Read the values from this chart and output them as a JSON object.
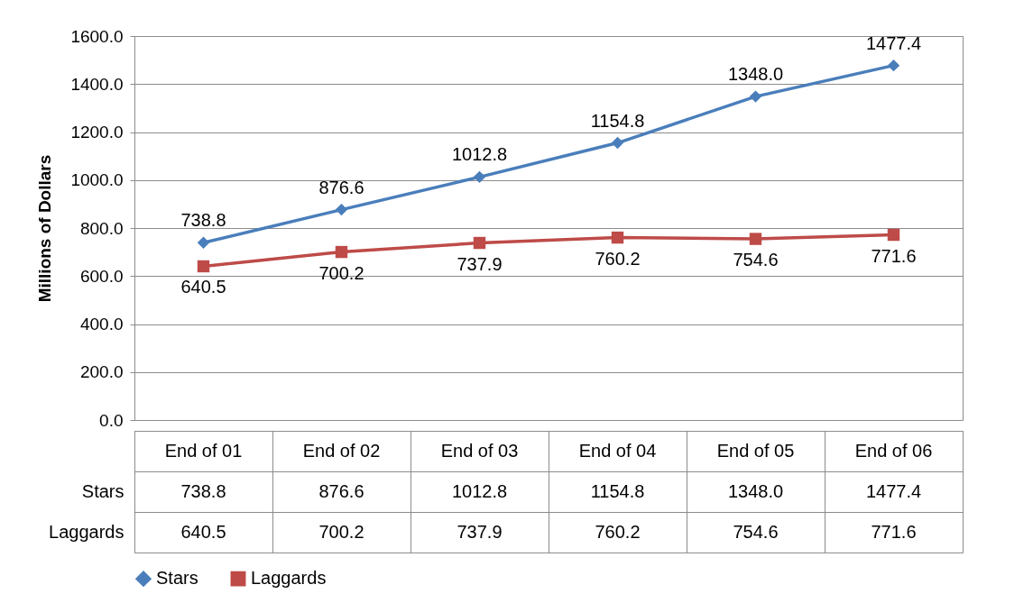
{
  "chart_data": {
    "type": "line",
    "categories": [
      "End of 01",
      "End of 02",
      "End of 03",
      "End of 04",
      "End of 05",
      "End of 06"
    ],
    "ylabel": "Millions of Dollars",
    "ylim": [
      0,
      1600
    ],
    "yticks": [
      {
        "value": 0,
        "label": "0.0"
      },
      {
        "value": 200,
        "label": "200.0"
      },
      {
        "value": 400,
        "label": "400.0"
      },
      {
        "value": 600,
        "label": "600.0"
      },
      {
        "value": 800,
        "label": "800.0"
      },
      {
        "value": 1000,
        "label": "1000.0"
      },
      {
        "value": 1200,
        "label": "1200.0"
      },
      {
        "value": 1400,
        "label": "1400.0"
      },
      {
        "value": 1600,
        "label": "1600.0"
      }
    ],
    "grid": "y",
    "legend": "bottom",
    "series": [
      {
        "name": "Stars",
        "color": "#4a7ebb",
        "marker": "diamond",
        "values": [
          738.8,
          876.6,
          1012.8,
          1154.8,
          1348.0,
          1477.4
        ],
        "value_labels": [
          "738.8",
          "876.6",
          "1012.8",
          "1154.8",
          "1348.0",
          "1477.4"
        ]
      },
      {
        "name": "Laggards",
        "color": "#be4b48",
        "marker": "square",
        "values": [
          640.5,
          700.2,
          737.9,
          760.2,
          754.6,
          771.6
        ],
        "value_labels": [
          "640.5",
          "700.2",
          "737.9",
          "760.2",
          "754.6",
          "771.6"
        ]
      }
    ]
  }
}
